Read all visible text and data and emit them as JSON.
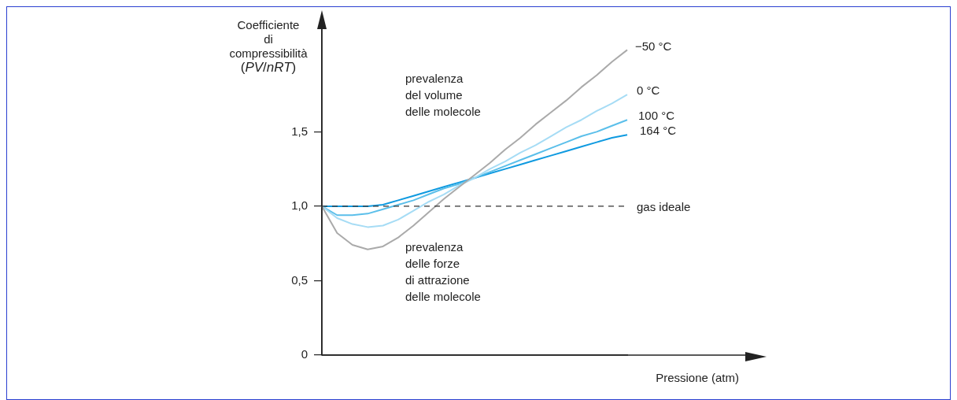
{
  "chart_data": {
    "type": "line",
    "ylabel": "Coefficiente\ndi\ncompressibilità\n(PV/nRT)",
    "xlabel": "Pressione (atm)",
    "categories": [
      null,
      null,
      null,
      null,
      null,
      null,
      null,
      null,
      null,
      null,
      null,
      null,
      null,
      null,
      null,
      null,
      null,
      null,
      null,
      null,
      null
    ],
    "ylim": [
      0,
      2.2
    ],
    "yticks": [
      0,
      {
        "value": 0.5,
        "label": "0,5"
      },
      {
        "value": 1,
        "label": "1,0"
      },
      {
        "value": 1.5,
        "label": "1,5"
      }
    ],
    "tick_labels": "y",
    "grid": false,
    "legend": false,
    "marker": "none",
    "line_style": "solid",
    "series": [
      {
        "name": "−50 °C",
        "color": "#aaaaaa",
        "values": [
          1.0,
          0.82,
          0.74,
          0.71,
          0.73,
          0.79,
          0.87,
          0.96,
          1.05,
          1.13,
          1.21,
          1.29,
          1.38,
          1.46,
          1.55,
          1.63,
          1.71,
          1.8,
          1.88,
          1.97,
          2.05
        ]
      },
      {
        "name": "0 °C",
        "color": "#a6dcf5",
        "values": [
          1.0,
          0.92,
          0.88,
          0.86,
          0.87,
          0.91,
          0.97,
          1.03,
          1.08,
          1.14,
          1.19,
          1.25,
          1.3,
          1.36,
          1.41,
          1.47,
          1.53,
          1.58,
          1.64,
          1.69,
          1.75
        ]
      },
      {
        "name": "100 °C",
        "color": "#5bbfea",
        "values": [
          1.0,
          0.94,
          0.94,
          0.95,
          0.98,
          1.01,
          1.04,
          1.08,
          1.12,
          1.15,
          1.19,
          1.23,
          1.27,
          1.31,
          1.35,
          1.39,
          1.43,
          1.47,
          1.5,
          1.54,
          1.58
        ]
      },
      {
        "name": "164 °C",
        "color": "#0f9ae0",
        "values": [
          1.0,
          1.0,
          1.0,
          1.0,
          1.01,
          1.04,
          1.07,
          1.1,
          1.13,
          1.16,
          1.19,
          1.22,
          1.25,
          1.28,
          1.31,
          1.34,
          1.37,
          1.4,
          1.43,
          1.46,
          1.48
        ]
      }
    ],
    "ref_lines": [
      {
        "axis": "y",
        "value": 1,
        "label": "gas ideale",
        "color": "#333333",
        "line_style": "dashed"
      }
    ],
    "annotations": [
      "prevalenza\ndel volume\ndelle molecole",
      "prevalenza\ndelle forze\ndi attrazione\ndelle molecole"
    ]
  }
}
